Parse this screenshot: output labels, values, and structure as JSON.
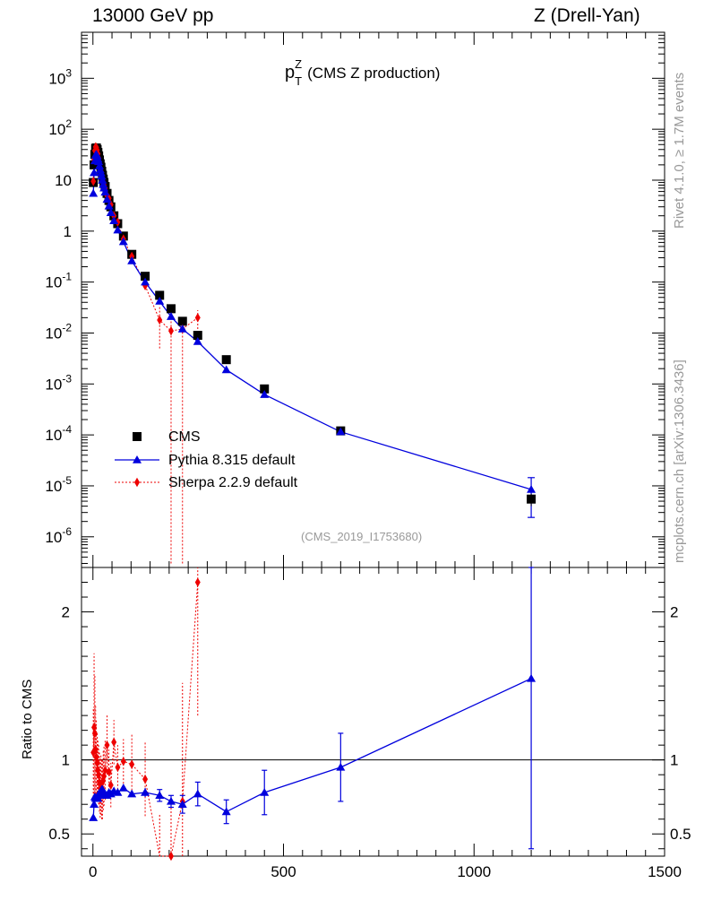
{
  "header": {
    "left": "13000 GeV pp",
    "right": "Z (Drell-Yan)"
  },
  "side_labels": {
    "rivet": "Rivet 4.1.0, ≥ 1.7M events",
    "mcplots": "mcplots.cern.ch [arXiv:1306.3436]"
  },
  "plot_title": "p",
  "plot_title_sup": "Z",
  "plot_title_sub": "T",
  "plot_title_rest": "(CMS Z production)",
  "reference": "(CMS_2019_I1753680)",
  "legend": {
    "cms": "CMS",
    "pythia": "Pythia 8.315 default",
    "sherpa": "Sherpa 2.2.9 default"
  },
  "ratio_ylabel": "Ratio to CMS",
  "colors": {
    "data": "#000000",
    "pythia": "#0000dd",
    "sherpa": "#ee0000"
  },
  "chart_data": [
    {
      "type": "scatter",
      "scale": "log",
      "title": "pT Z (CMS Z production)",
      "xlabel": "",
      "ylabel": "",
      "xlim": [
        -30,
        1500
      ],
      "ylim": [
        2.5e-07,
        8000
      ],
      "y_tick_labels": [
        "10^-6",
        "10^-5",
        "10^-4",
        "10^-3",
        "10^-2",
        "10^-1",
        "1",
        "10",
        "10^2",
        "10^3"
      ],
      "series": [
        {
          "name": "CMS",
          "marker": "square",
          "x": [
            1,
            3,
            5,
            7,
            9,
            11,
            13,
            15,
            17,
            19,
            21,
            23,
            25,
            27,
            29,
            32,
            37,
            42,
            47,
            55,
            65,
            80,
            102,
            137,
            175,
            205,
            235,
            275,
            350,
            450,
            650,
            1150
          ],
          "y": [
            9,
            20,
            32,
            42,
            43,
            40,
            35,
            30,
            25,
            21,
            18,
            15,
            12.5,
            10.5,
            9,
            7.5,
            5.5,
            4,
            3,
            2,
            1.4,
            0.8,
            0.35,
            0.13,
            0.055,
            0.03,
            0.017,
            0.009,
            0.003,
            0.0008,
            0.00012,
            5.5e-06
          ]
        },
        {
          "name": "Pythia 8.315 default",
          "marker": "triangle",
          "line": "solid",
          "x": [
            1,
            3,
            5,
            7,
            9,
            11,
            13,
            15,
            17,
            19,
            21,
            23,
            25,
            27,
            29,
            32,
            37,
            42,
            47,
            55,
            65,
            80,
            102,
            137,
            175,
            205,
            235,
            275,
            350,
            450,
            650,
            1150
          ],
          "y": [
            5.5,
            14,
            24,
            31,
            32,
            30,
            26,
            23,
            19,
            16,
            14,
            12,
            10,
            8.2,
            7,
            5.8,
            4.2,
            3.1,
            2.3,
            1.6,
            1.05,
            0.62,
            0.26,
            0.1,
            0.042,
            0.021,
            0.012,
            0.0068,
            0.0019,
            0.00062,
            0.000115,
            8.5e-06
          ]
        },
        {
          "name": "Sherpa 2.2.9 default",
          "marker": "diamond",
          "line": "dotted",
          "x": [
            1,
            3,
            5,
            7,
            9,
            11,
            13,
            15,
            17,
            19,
            21,
            23,
            25,
            27,
            29,
            32,
            37,
            42,
            47,
            55,
            65,
            80,
            102,
            137,
            175,
            205,
            235,
            275
          ],
          "y": [
            9.5,
            25,
            38,
            45,
            44,
            39,
            33,
            27,
            21,
            17,
            15,
            12,
            10,
            9,
            8,
            7,
            5,
            4.4,
            3.3,
            2,
            1.5,
            0.7,
            0.32,
            0.085,
            0.018,
            0.011,
            0.012,
            0.02
          ]
        }
      ]
    },
    {
      "type": "scatter",
      "title": "Ratio to CMS",
      "xlabel": "",
      "ylabel": "Ratio to CMS",
      "xlim": [
        -30,
        1500
      ],
      "ylim": [
        0.35,
        2.3
      ],
      "x_ticks": [
        0,
        500,
        1000,
        1500
      ],
      "y_ticks": [
        0.5,
        1,
        2
      ],
      "reference_line": 1,
      "series": [
        {
          "name": "Pythia 8.315 default",
          "marker": "triangle",
          "line": "solid",
          "x": [
            1,
            3,
            5,
            7,
            9,
            11,
            13,
            15,
            17,
            19,
            21,
            23,
            25,
            27,
            29,
            32,
            37,
            42,
            47,
            55,
            65,
            80,
            102,
            137,
            175,
            205,
            235,
            275,
            350,
            450,
            650,
            1150
          ],
          "y": [
            0.61,
            0.7,
            0.75,
            0.74,
            0.74,
            0.75,
            0.74,
            0.77,
            0.76,
            0.76,
            0.78,
            0.8,
            0.8,
            0.78,
            0.78,
            0.77,
            0.76,
            0.78,
            0.77,
            0.79,
            0.78,
            0.81,
            0.77,
            0.78,
            0.76,
            0.72,
            0.7,
            0.77,
            0.65,
            0.78,
            0.95,
            1.55
          ],
          "err": [
            0.02,
            0.02,
            0.02,
            0.02,
            0.02,
            0.02,
            0.02,
            0.02,
            0.02,
            0.02,
            0.02,
            0.02,
            0.02,
            0.02,
            0.02,
            0.02,
            0.02,
            0.02,
            0.02,
            0.02,
            0.02,
            0.02,
            0.02,
            0.03,
            0.04,
            0.04,
            0.06,
            0.08,
            0.08,
            0.15,
            0.23,
            1.15
          ]
        },
        {
          "name": "Sherpa 2.2.9 default",
          "marker": "diamond",
          "line": "dotted",
          "x": [
            1,
            3,
            5,
            7,
            9,
            11,
            13,
            15,
            17,
            19,
            21,
            23,
            25,
            27,
            29,
            32,
            37,
            42,
            47,
            55,
            65,
            80,
            102,
            137,
            175,
            205,
            235,
            275
          ],
          "y": [
            1.05,
            1.22,
            1.18,
            1.07,
            1.02,
            0.98,
            0.93,
            0.9,
            0.85,
            0.81,
            0.83,
            0.8,
            0.8,
            0.86,
            0.89,
            0.93,
            1.1,
            0.92,
            0.83,
            1.12,
            0.95,
            0.99,
            0.97,
            0.87,
            0.33,
            0.35,
            0.72,
            2.2
          ],
          "err": [
            0.3,
            0.5,
            0.4,
            0.3,
            0.25,
            0.2,
            0.2,
            0.2,
            0.2,
            0.2,
            0.2,
            0.2,
            0.2,
            0.2,
            0.2,
            0.2,
            0.2,
            0.15,
            0.15,
            0.15,
            0.15,
            0.15,
            0.2,
            0.25,
            0.3,
            0.4,
            0.8,
            0.9
          ]
        }
      ]
    }
  ]
}
